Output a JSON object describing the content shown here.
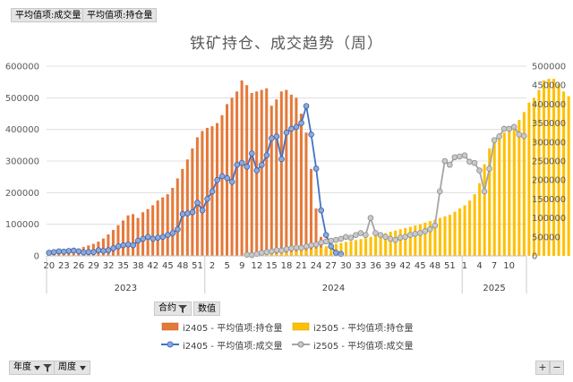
{
  "buttons": {
    "avg_volume": "平均值项:成交量",
    "avg_open_interest": "平均值项:持仓量",
    "contract": "合约",
    "values": "数值",
    "year": "年度",
    "week": "周度",
    "zoom_in": "+",
    "zoom_out": "−"
  },
  "icons": {
    "filter": "filter-icon",
    "dropdown": "dropdown-arrow-icon"
  },
  "chart_data": {
    "type": "bar+line",
    "title": "铁矿持仓、成交趋势（周）",
    "x_week_labels": [
      "20",
      "23",
      "26",
      "29",
      "32",
      "35",
      "38",
      "42",
      "45",
      "48",
      "51",
      "2",
      "5",
      "9",
      "12",
      "15",
      "18",
      "21",
      "24",
      "27",
      "30",
      "33",
      "36",
      "39",
      "42",
      "45",
      "48",
      "51",
      "1",
      "4",
      "7",
      "10"
    ],
    "x_year_labels": [
      "2023",
      "2024",
      "2025"
    ],
    "y_left_ticks": [
      "0",
      "100000",
      "200000",
      "300000",
      "400000",
      "500000",
      "600000"
    ],
    "y_right_ticks": [
      "0",
      "50000",
      "100000",
      "150000",
      "200000",
      "250000",
      "300000",
      "350000",
      "400000",
      "450000",
      "500000"
    ],
    "ylim_left": [
      0,
      600000
    ],
    "ylim_right": [
      0,
      500000
    ],
    "grid": true,
    "colors": {
      "i2405_bar": "#e5793a",
      "i2505_bar": "#ffc000",
      "i2405_line": "#4472c4",
      "i2505_line": "#a5a5a5"
    },
    "series": [
      {
        "name": "i2405 - 平均值项:持仓量",
        "type": "bar",
        "axis": "left",
        "start_week": 0,
        "values": [
          8000,
          9000,
          11000,
          14000,
          17000,
          20000,
          23000,
          28000,
          33000,
          38000,
          45000,
          55000,
          68000,
          82000,
          97000,
          112000,
          128000,
          132000,
          120000,
          138000,
          148000,
          160000,
          175000,
          185000,
          195000,
          215000,
          245000,
          275000,
          305000,
          340000,
          375000,
          395000,
          405000,
          410000,
          420000,
          445000,
          480000,
          500000,
          520000,
          555000,
          540000,
          515000,
          520000,
          525000,
          530000,
          475000,
          495000,
          520000,
          525000,
          510000,
          500000,
          450000,
          390000,
          275000,
          150000,
          60000,
          20000,
          8000,
          3000
        ]
      },
      {
        "name": "i2505 - 平均值项:持仓量",
        "type": "bar",
        "axis": "left",
        "start_week": 40,
        "values": [
          1000,
          1500,
          2000,
          3000,
          4000,
          5000,
          6000,
          8000,
          10000,
          12000,
          14000,
          16000,
          18000,
          20000,
          23000,
          26000,
          30000,
          34000,
          38000,
          41000,
          44000,
          47000,
          50000,
          53000,
          56000,
          60000,
          64000,
          68000,
          72000,
          76000,
          80000,
          84000,
          88000,
          92000,
          96000,
          100000,
          105000,
          110000,
          115000,
          120000,
          125000,
          130000,
          140000,
          150000,
          160000,
          175000,
          195000,
          230000,
          290000,
          340000,
          370000,
          380000,
          390000,
          400000,
          415000,
          430000,
          455000,
          485000,
          500000,
          525000,
          555000,
          560000,
          560000,
          545000,
          520000,
          505000
        ]
      },
      {
        "name": "i2405 - 平均值项:成交量",
        "type": "line",
        "axis": "right",
        "start_week": 0,
        "values": [
          8000,
          10000,
          12000,
          11000,
          13000,
          14000,
          12000,
          9000,
          10000,
          10000,
          15000,
          13000,
          15000,
          20000,
          25000,
          28000,
          30000,
          28000,
          40000,
          45000,
          50000,
          45000,
          48000,
          50000,
          55000,
          60000,
          70000,
          110000,
          112000,
          115000,
          140000,
          120000,
          150000,
          170000,
          200000,
          210000,
          205000,
          195000,
          240000,
          245000,
          235000,
          270000,
          225000,
          240000,
          265000,
          310000,
          315000,
          255000,
          325000,
          335000,
          340000,
          350000,
          395000,
          320000,
          230000,
          120000,
          55000,
          25000,
          8000,
          5000
        ]
      },
      {
        "name": "i2505 - 平均值项:成交量",
        "type": "line",
        "axis": "right",
        "start_week": 40,
        "values": [
          3000,
          2000,
          5000,
          8000,
          10000,
          12000,
          15000,
          14000,
          18000,
          20000,
          22000,
          21000,
          25000,
          28000,
          30000,
          35000,
          38000,
          40000,
          42000,
          45000,
          50000,
          48000,
          55000,
          60000,
          55000,
          100000,
          60000,
          55000,
          50000,
          45000,
          42000,
          48000,
          50000,
          55000,
          58000,
          60000,
          65000,
          70000,
          80000,
          170000,
          250000,
          240000,
          260000,
          262000,
          265000,
          248000,
          245000,
          225000,
          170000,
          230000,
          305000,
          315000,
          335000,
          335000,
          340000,
          320000,
          316000
        ]
      }
    ]
  }
}
